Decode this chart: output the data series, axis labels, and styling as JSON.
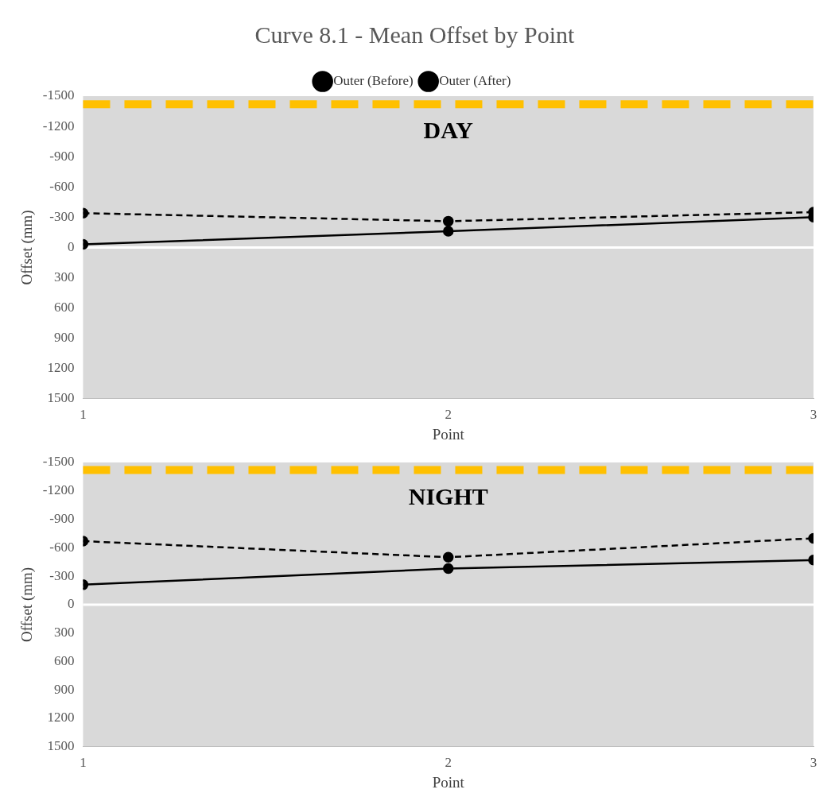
{
  "chart_data": [
    {
      "type": "line",
      "title": "Curve 8.1 - Mean Offset by Point",
      "xlabel": "Point",
      "ylabel": "Offset (mm)",
      "x": [
        1,
        2,
        3
      ],
      "xlim": [
        1,
        3
      ],
      "xticks": [
        1,
        2,
        3
      ],
      "ylim": [
        1500,
        -1500
      ],
      "yticks": [
        -1500,
        -1200,
        -900,
        -600,
        -300,
        0,
        300,
        600,
        900,
        1200,
        1500
      ],
      "grid": false,
      "legend": "top",
      "marker": "circle",
      "annotations": [
        "DAY"
      ],
      "ref_lines": [
        {
          "axis": "y",
          "value": -1420,
          "color": "#ffc000",
          "line_style": "dashed"
        },
        {
          "axis": "y",
          "value": 0,
          "color": "#ffffff",
          "line_style": "solid"
        }
      ],
      "series": [
        {
          "name": "Outer (Before)",
          "color": "#000000",
          "line_style": "dashed",
          "values": [
            -340,
            -260,
            -350
          ]
        },
        {
          "name": "Outer (After)",
          "color": "#000000",
          "line_style": "solid",
          "values": [
            -30,
            -160,
            -300
          ]
        }
      ]
    },
    {
      "type": "line",
      "xlabel": "Point",
      "ylabel": "Offset (mm)",
      "x": [
        1,
        2,
        3
      ],
      "xlim": [
        1,
        3
      ],
      "xticks": [
        1,
        2,
        3
      ],
      "ylim": [
        1500,
        -1500
      ],
      "yticks": [
        -1500,
        -1200,
        -900,
        -600,
        -300,
        0,
        300,
        600,
        900,
        1200,
        1500
      ],
      "grid": false,
      "marker": "circle",
      "annotations": [
        "NIGHT"
      ],
      "ref_lines": [
        {
          "axis": "y",
          "value": -1420,
          "color": "#ffc000",
          "line_style": "dashed"
        },
        {
          "axis": "y",
          "value": 0,
          "color": "#ffffff",
          "line_style": "solid"
        }
      ],
      "series": [
        {
          "color": "#000000",
          "line_style": "dashed",
          "values": [
            -670,
            -500,
            -700
          ]
        },
        {
          "color": "#000000",
          "line_style": "solid",
          "values": [
            -210,
            -380,
            -470
          ]
        }
      ]
    }
  ]
}
